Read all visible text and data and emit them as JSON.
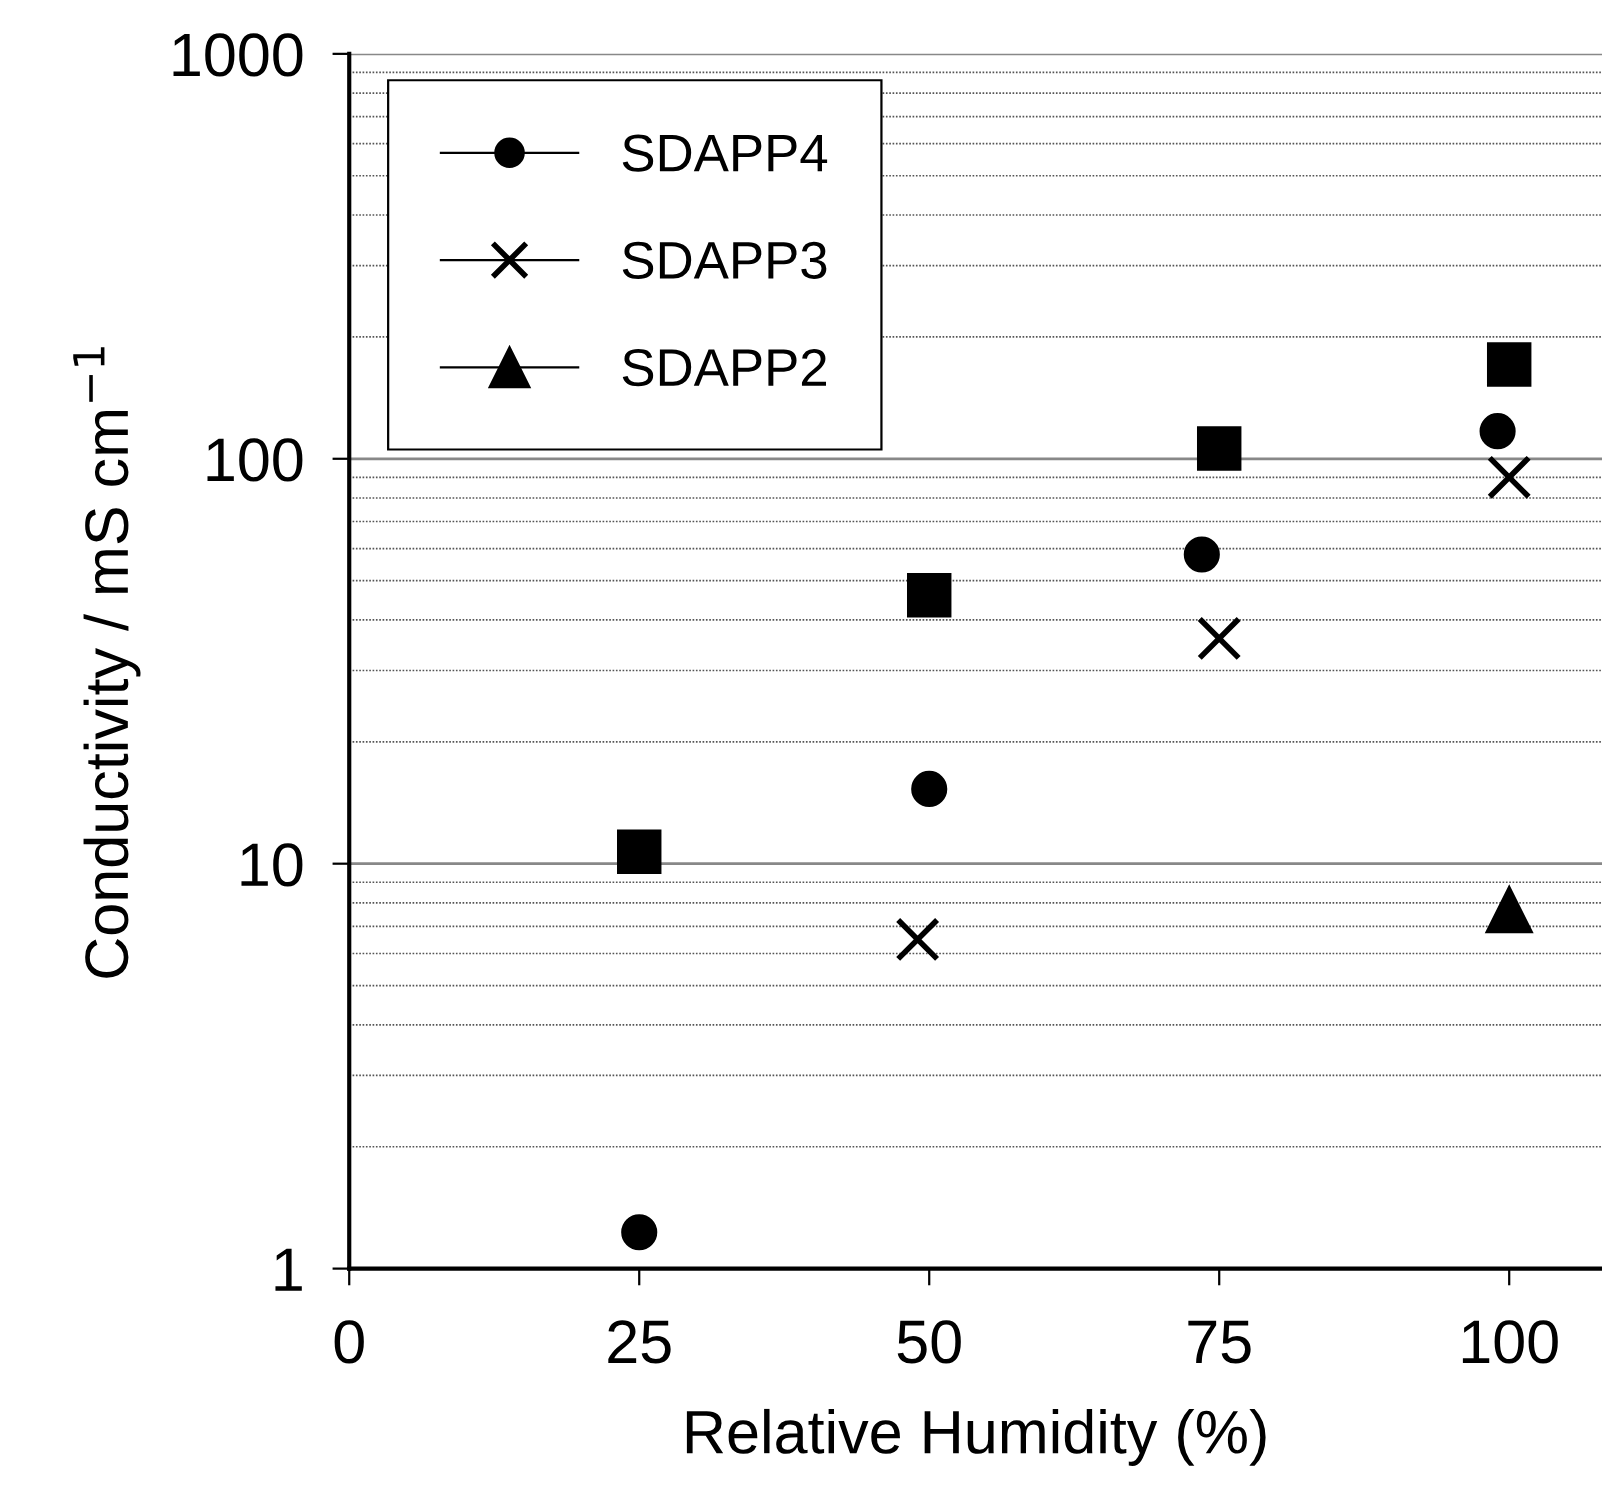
{
  "chart_data": {
    "type": "scatter",
    "xlabel": "Relative Humidity (%)",
    "ylabel": "Conductivity / mS cm$^{−1}$",
    "xlim": [
      0,
      108
    ],
    "xticks": [
      0,
      25,
      50,
      75,
      100
    ],
    "ylim": [
      1,
      1000
    ],
    "yticks": [
      1,
      10,
      100,
      1000
    ],
    "log": "y",
    "grid": "y",
    "legend": "top left",
    "series": [
      {
        "color": "#000000",
        "marker": "square",
        "x": [
          25,
          50,
          75,
          100
        ],
        "values": [
          10.7,
          46,
          106,
          171
        ]
      },
      {
        "name": "SDAPP4",
        "color": "#000000",
        "marker": "circle",
        "x": [
          25,
          50,
          73.5,
          99
        ],
        "values": [
          1.23,
          15.3,
          58,
          117
        ]
      },
      {
        "name": "SDAPP3",
        "color": "#000000",
        "marker": "cross",
        "x": [
          49,
          75,
          100
        ],
        "values": [
          6.5,
          36,
          90
        ]
      },
      {
        "name": "SDAPP2",
        "color": "#000000",
        "marker": "triangle",
        "x": [
          100
        ],
        "values": [
          7.7
        ]
      }
    ]
  }
}
